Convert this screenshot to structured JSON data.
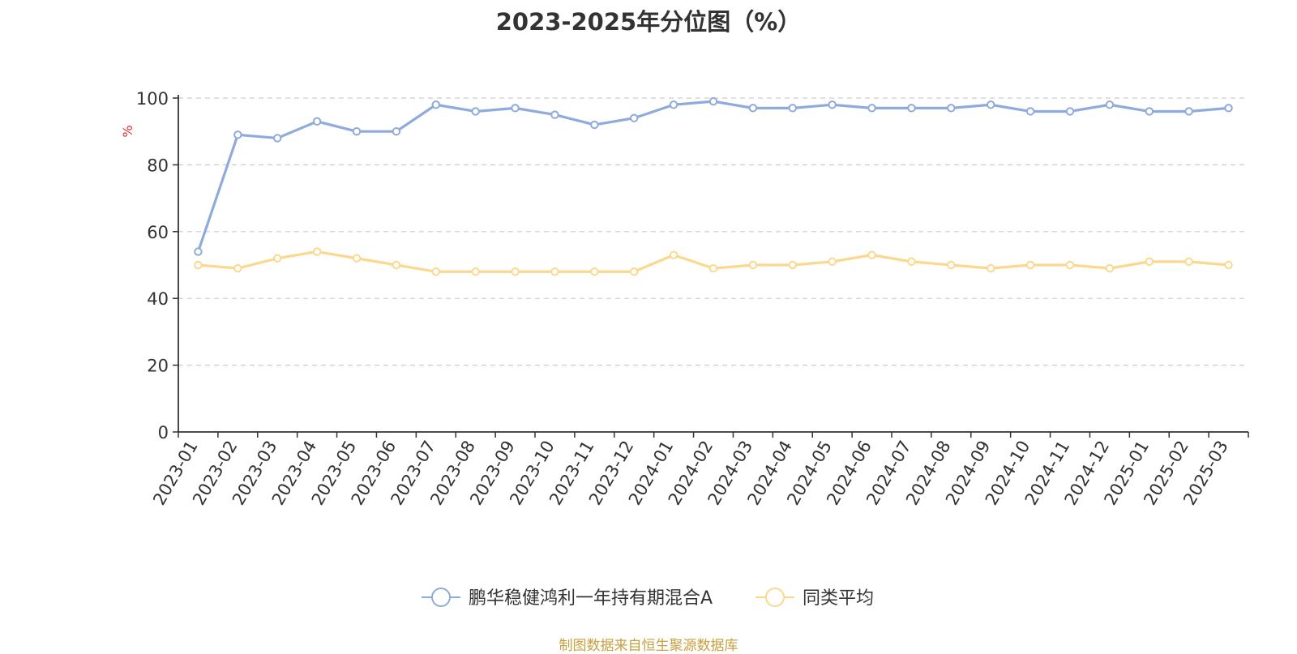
{
  "chart_data": {
    "type": "line",
    "title": "2023-2025年分位图（%）",
    "ylabel": "%",
    "xlabel": "",
    "ylim": [
      0,
      100
    ],
    "yticks": [
      0,
      20,
      40,
      60,
      80,
      100
    ],
    "grid": true,
    "legend_position": "bottom",
    "categories": [
      "2023-01",
      "2023-02",
      "2023-03",
      "2023-04",
      "2023-05",
      "2023-06",
      "2023-07",
      "2023-08",
      "2023-09",
      "2023-10",
      "2023-11",
      "2023-12",
      "2024-01",
      "2024-02",
      "2024-03",
      "2024-04",
      "2024-05",
      "2024-06",
      "2024-07",
      "2024-08",
      "2024-09",
      "2024-10",
      "2024-11",
      "2024-12",
      "2025-01",
      "2025-02",
      "2025-03"
    ],
    "series": [
      {
        "name": "鹏华稳健鸿利一年持有期混合A",
        "color": "#8faadc",
        "values": [
          54,
          89,
          88,
          93,
          90,
          90,
          98,
          96,
          97,
          95,
          92,
          94,
          98,
          99,
          97,
          97,
          98,
          97,
          97,
          97,
          98,
          96,
          96,
          98,
          96,
          96,
          97
        ]
      },
      {
        "name": "同类平均",
        "color": "#fcd88e",
        "values": [
          50,
          49,
          52,
          54,
          52,
          50,
          48,
          48,
          48,
          48,
          48,
          48,
          53,
          49,
          50,
          50,
          51,
          53,
          51,
          50,
          49,
          50,
          50,
          49,
          51,
          51,
          50
        ]
      }
    ]
  },
  "footer": "制图数据来自恒生聚源数据库",
  "colors": {
    "axis": "#333333",
    "grid": "#cccccc",
    "ylabel": "#e03030",
    "footer": "#c8a040"
  }
}
